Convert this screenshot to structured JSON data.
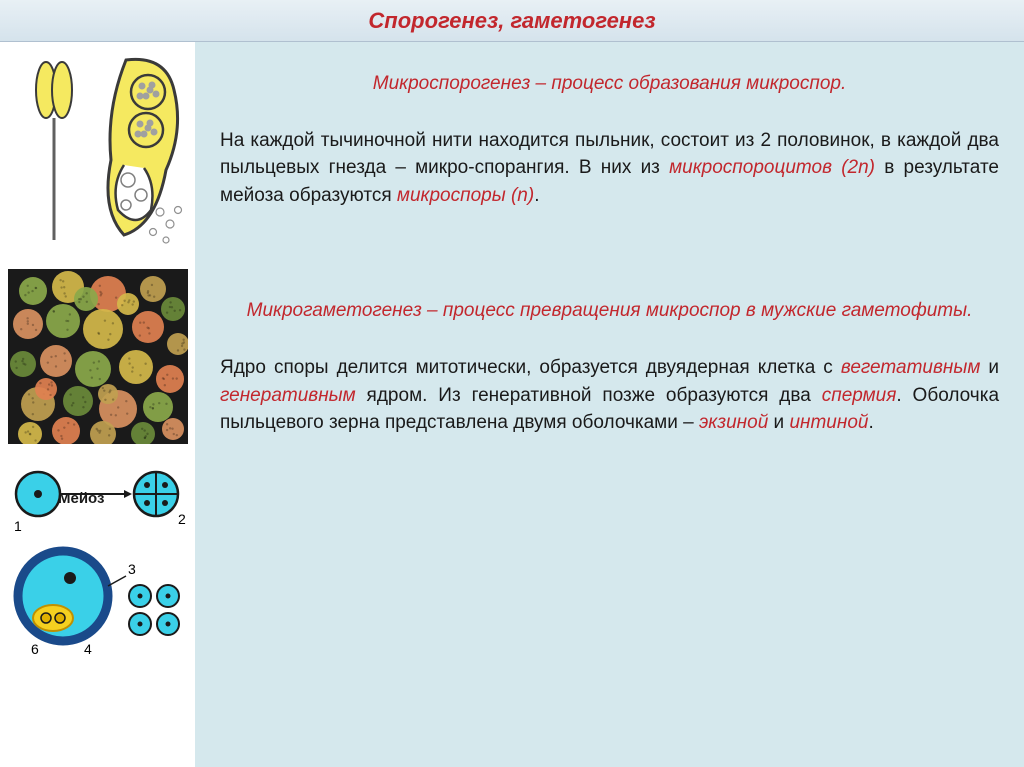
{
  "title": "Спорогенез, гаметогенез",
  "section1": {
    "heading_prefix": "Микроспорогенез",
    "heading_rest": " – процесс образования микроспор.",
    "para_parts": [
      {
        "t": "На каждой тычиночной нити находится пыльник, состоит из 2 половинок, в каждой два пыльцевых гнезда – микро-спорангия. В них из ",
        "cls": ""
      },
      {
        "t": "микроспороцитов (2n)",
        "cls": "red"
      },
      {
        "t": " в результате мейоза образуются ",
        "cls": ""
      },
      {
        "t": "микроспоры (n)",
        "cls": "red"
      },
      {
        "t": ".",
        "cls": ""
      }
    ]
  },
  "section2": {
    "heading_prefix": "Микрогаметогенез",
    "heading_rest": " – процесс превращения микроспор в мужские гаметофиты.",
    "para_parts": [
      {
        "t": "Ядро споры делится митотически, образуется двуядерная клетка с ",
        "cls": ""
      },
      {
        "t": "вегетативным",
        "cls": "red"
      },
      {
        "t": " и ",
        "cls": ""
      },
      {
        "t": "генеративным",
        "cls": "red"
      },
      {
        "t": " ядром. Из генеративной позже образуются два ",
        "cls": ""
      },
      {
        "t": "спермия",
        "cls": "red"
      },
      {
        "t": ". Оболочка пыльцевого зерна представлена двумя оболочками – ",
        "cls": ""
      },
      {
        "t": "экзиной",
        "cls": "red"
      },
      {
        "t": " и ",
        "cls": ""
      },
      {
        "t": "интиной",
        "cls": "red"
      },
      {
        "t": ".",
        "cls": ""
      }
    ]
  },
  "anther_diagram": {
    "stamen_color": "#f5e960",
    "outline_color": "#3a3a3a",
    "spore_cluster_color": "#b0b0b0",
    "bg": "#ffffff"
  },
  "pollen_photo": {
    "bg": "#1a1a1a",
    "grain_colors": [
      "#8aa84a",
      "#d4b84a",
      "#e08050",
      "#c0a050",
      "#6a8a3a",
      "#d89060"
    ],
    "n_grains": 32
  },
  "meiosis_diagram": {
    "labels": {
      "l1": "1",
      "l2": "2",
      "l3": "3",
      "l4": "4",
      "l6": "6",
      "meiosis": "Мейоз"
    },
    "cell_fill": "#3ad0e8",
    "cell_stroke": "#1a1a1a",
    "nucleus": "#1a1a1a",
    "pollen_outer": "#1a4a8a",
    "sperm_fill": "#f5d020",
    "small_cell_fill": "#3ad0e8"
  },
  "colors": {
    "title_red": "#c2272d",
    "panel_bg": "#d5e8ed",
    "header_grad_top": "#e8f0f5",
    "header_grad_bot": "#d5e3ec"
  },
  "typography": {
    "title_fontsize": 22,
    "body_fontsize": 19
  }
}
